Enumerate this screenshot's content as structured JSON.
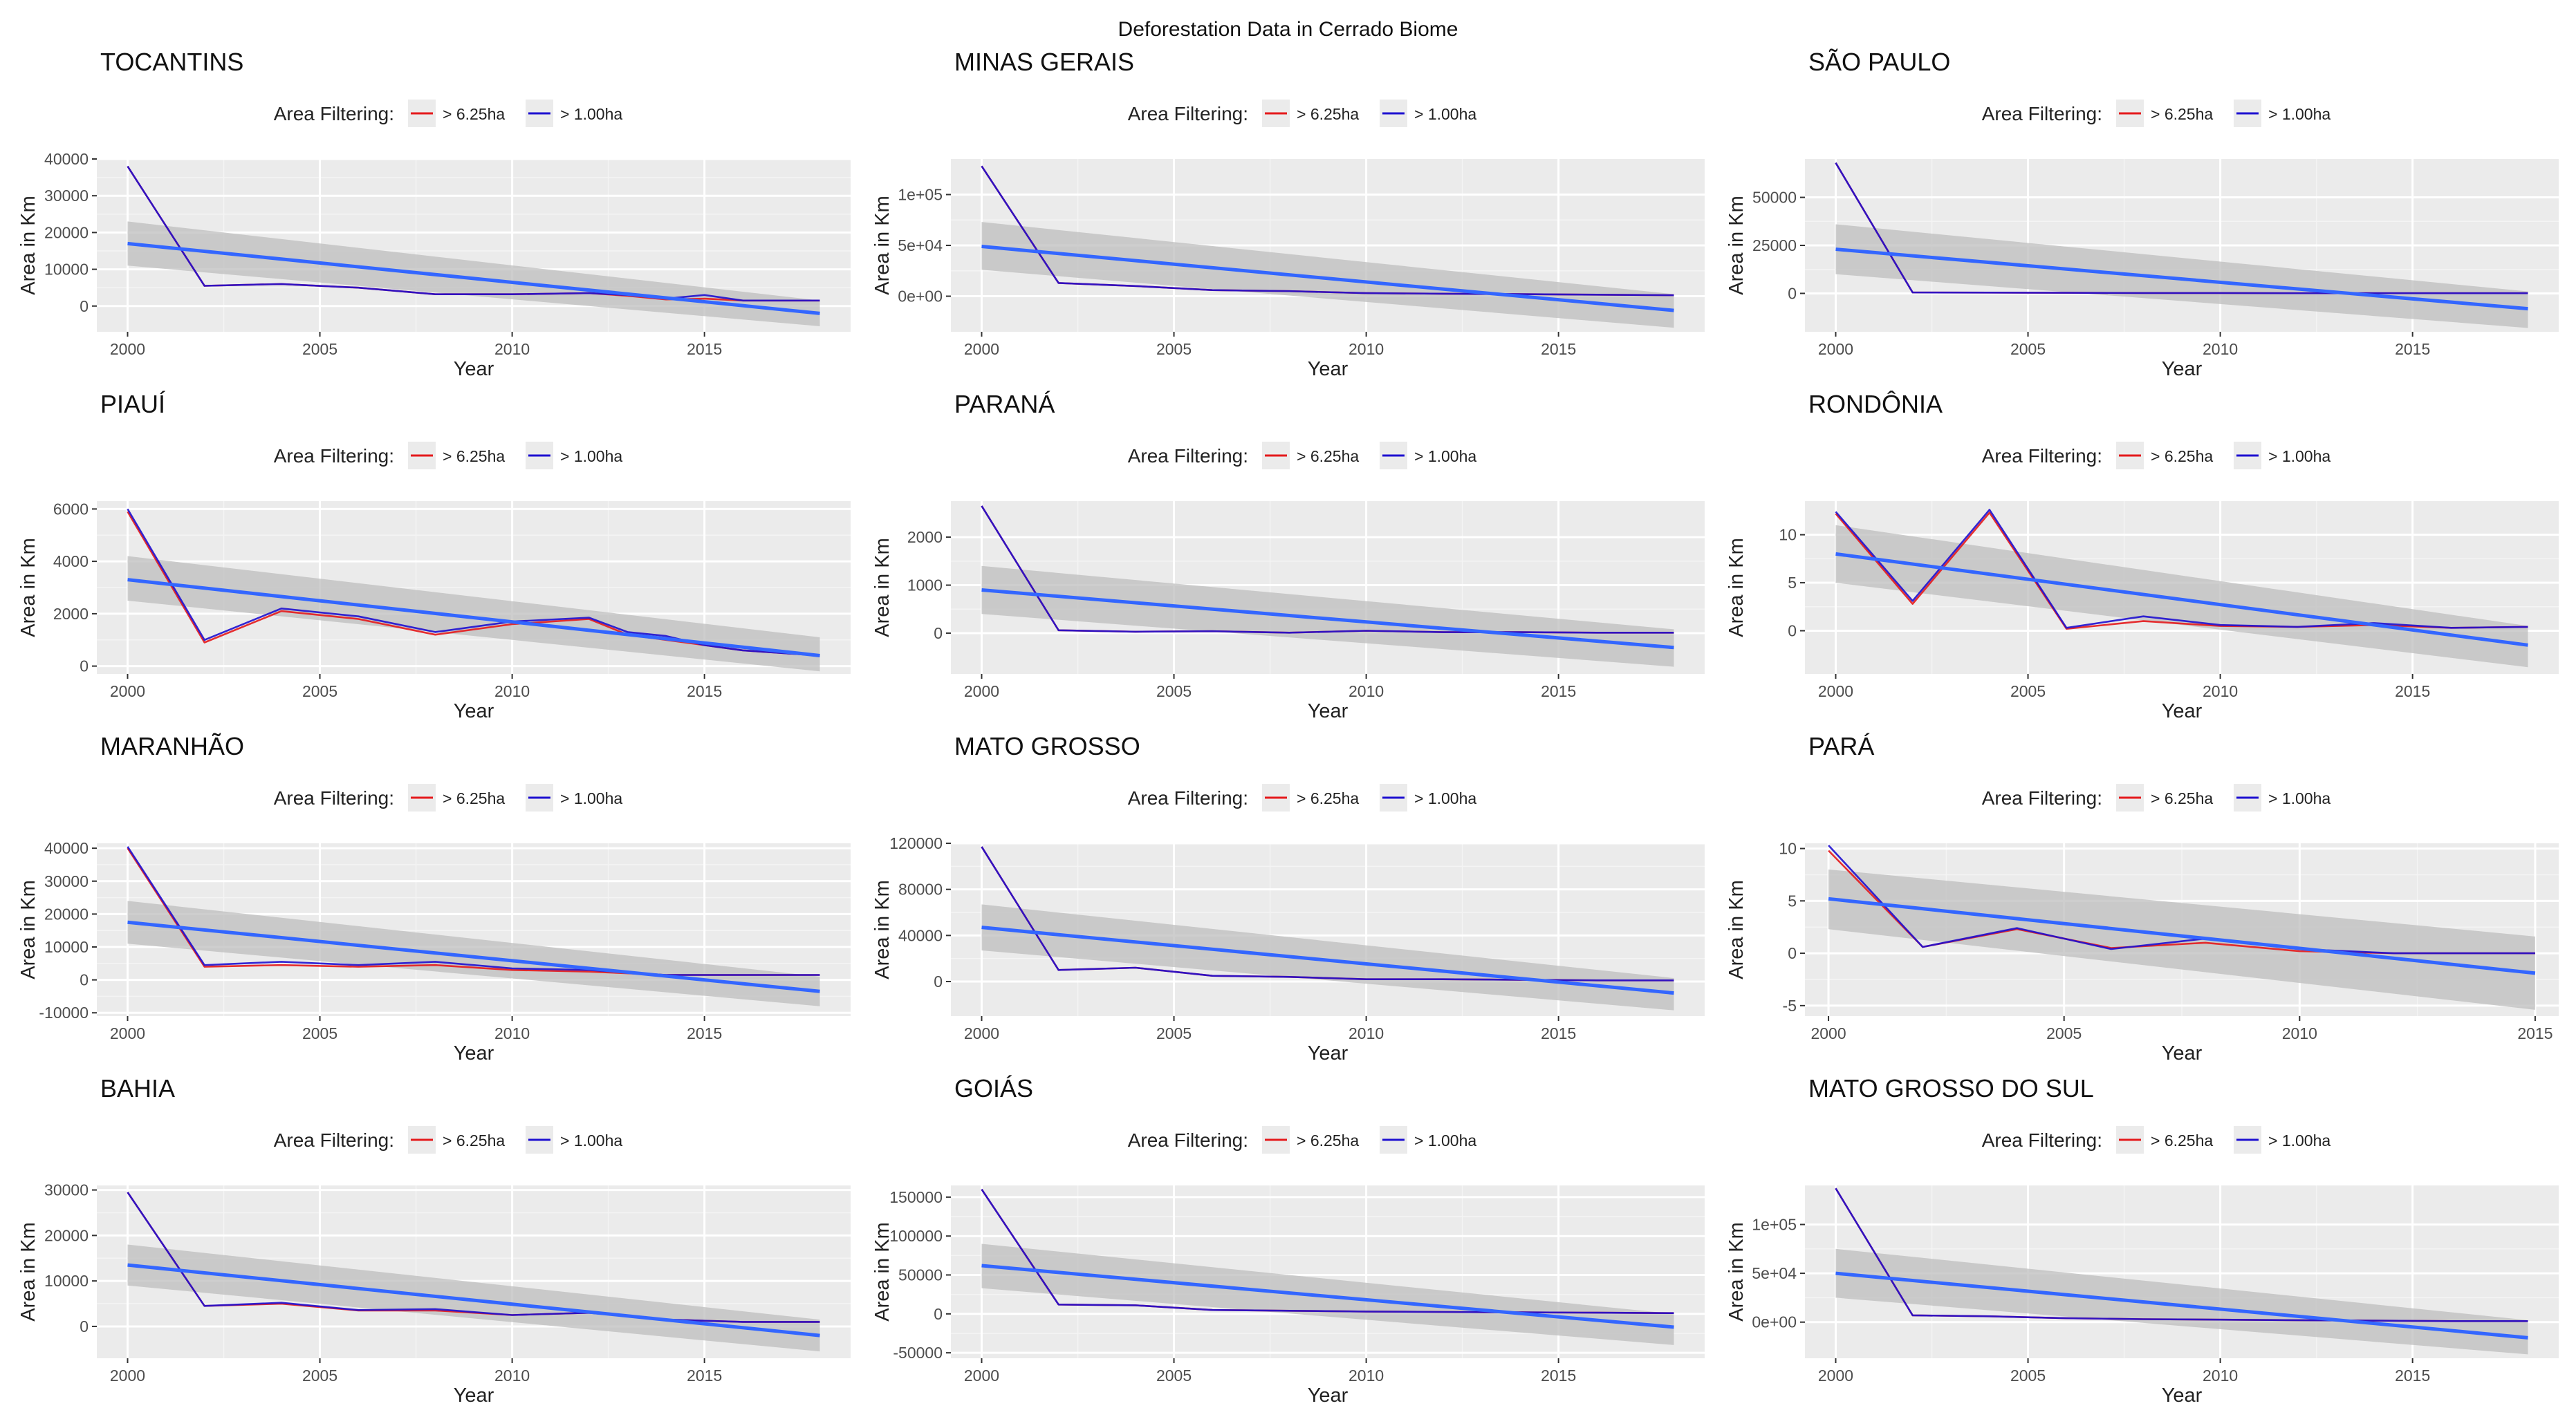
{
  "figure": {
    "title": "Deforestation Data in Cerrado Biome",
    "legend_title": "Area Filtering:",
    "legend_items": [
      "> 6.25ha",
      "> 1.00ha"
    ],
    "xlabel": "Year",
    "ylabel": "Area in Km"
  },
  "colors": {
    "panel_bg": "#EBEBEB",
    "grid_major": "#FFFFFF",
    "series_6_25": "#E41A1C",
    "series_1_00": "#1E10D0",
    "trend_line": "#3366FF",
    "confidence_band": "#BEBEBE",
    "text": "#222222",
    "tick_text": "#4D4D4D"
  },
  "chart_data": [
    {
      "type": "line",
      "title": "TOCANTINS",
      "xlabel": "Year",
      "ylabel": "Area in Km",
      "xlim": [
        1999.2,
        2018.8
      ],
      "ylim": [
        -7000,
        40000
      ],
      "xticks": [
        2000,
        2005,
        2010,
        2015
      ],
      "xtick_labels": [
        "2000",
        "2005",
        "2010",
        "2015"
      ],
      "yticks": [
        0,
        10000,
        20000,
        30000,
        40000
      ],
      "ytick_labels": [
        "0",
        "10000",
        "20000",
        "30000",
        "40000"
      ],
      "x": [
        2000,
        2002,
        2004,
        2006,
        2008,
        2010,
        2012,
        2013,
        2014,
        2015,
        2016,
        2017,
        2018
      ],
      "series": [
        {
          "name": "> 6.25ha",
          "values": [
            38000,
            5500,
            6000,
            5000,
            3200,
            3200,
            3500,
            2800,
            1800,
            2000,
            1500,
            1500,
            1500
          ]
        },
        {
          "name": "> 1.00ha",
          "values": [
            38000,
            5500,
            6000,
            5000,
            3200,
            3200,
            3500,
            3000,
            2000,
            3000,
            1500,
            1500,
            1500
          ]
        }
      ],
      "trend": {
        "x": [
          2000,
          2018
        ],
        "y": [
          17000,
          -2000
        ],
        "band_upper": [
          23000,
          1500
        ],
        "band_lower": [
          11000,
          -5500
        ]
      }
    },
    {
      "type": "line",
      "title": "MINAS GERAIS",
      "xlabel": "Year",
      "ylabel": "Area in Km",
      "xlim": [
        1999.2,
        2018.8
      ],
      "ylim": [
        -35000,
        135000
      ],
      "xticks": [
        2000,
        2005,
        2010,
        2015
      ],
      "xtick_labels": [
        "2000",
        "2005",
        "2010",
        "2015"
      ],
      "yticks": [
        0,
        50000,
        100000
      ],
      "ytick_labels": [
        "0e+00",
        "5e+04",
        "1e+05"
      ],
      "x": [
        2000,
        2002,
        2004,
        2006,
        2008,
        2010,
        2012,
        2014,
        2016,
        2018
      ],
      "series": [
        {
          "name": "> 6.25ha",
          "values": [
            128000,
            13000,
            10000,
            6000,
            5000,
            3000,
            2500,
            2000,
            1500,
            1000
          ]
        },
        {
          "name": "> 1.00ha",
          "values": [
            128000,
            13000,
            10000,
            6000,
            5000,
            3000,
            2500,
            2000,
            1500,
            1000
          ]
        }
      ],
      "trend": {
        "x": [
          2000,
          2018
        ],
        "y": [
          49000,
          -14000
        ],
        "band_upper": [
          73000,
          2000
        ],
        "band_lower": [
          26000,
          -31000
        ]
      }
    },
    {
      "type": "line",
      "title": "SÃO PAULO",
      "xlabel": "Year",
      "ylabel": "Area in Km",
      "xlim": [
        1999.2,
        2018.8
      ],
      "ylim": [
        -20000,
        70000
      ],
      "xticks": [
        2000,
        2005,
        2010,
        2015
      ],
      "xtick_labels": [
        "2000",
        "2005",
        "2010",
        "2015"
      ],
      "yticks": [
        0,
        25000,
        50000
      ],
      "ytick_labels": [
        "0",
        "25000",
        "50000"
      ],
      "x": [
        2000,
        2002,
        2004,
        2006,
        2008,
        2010,
        2012,
        2014,
        2016,
        2018
      ],
      "series": [
        {
          "name": "> 6.25ha",
          "values": [
            68000,
            500,
            400,
            300,
            200,
            200,
            100,
            100,
            100,
            100
          ]
        },
        {
          "name": "> 1.00ha",
          "values": [
            68000,
            500,
            400,
            300,
            200,
            200,
            100,
            100,
            100,
            100
          ]
        }
      ],
      "trend": {
        "x": [
          2000,
          2018
        ],
        "y": [
          23000,
          -8000
        ],
        "band_upper": [
          36000,
          1000
        ],
        "band_lower": [
          10000,
          -18000
        ]
      }
    },
    {
      "type": "line",
      "title": "PIAUÍ",
      "xlabel": "Year",
      "ylabel": "Area in Km",
      "xlim": [
        1999.2,
        2018.8
      ],
      "ylim": [
        -300,
        6300
      ],
      "xticks": [
        2000,
        2005,
        2010,
        2015
      ],
      "xtick_labels": [
        "2000",
        "2005",
        "2010",
        "2015"
      ],
      "yticks": [
        0,
        2000,
        4000,
        6000
      ],
      "ytick_labels": [
        "0",
        "2000",
        "4000",
        "6000"
      ],
      "x": [
        2000,
        2002,
        2004,
        2006,
        2008,
        2010,
        2012,
        2013,
        2014,
        2015,
        2016,
        2017,
        2018
      ],
      "series": [
        {
          "name": "> 6.25ha",
          "values": [
            5900,
            900,
            2100,
            1800,
            1200,
            1600,
            1800,
            1200,
            1000,
            800,
            600,
            500,
            400
          ]
        },
        {
          "name": "> 1.00ha",
          "values": [
            6000,
            1000,
            2200,
            1900,
            1300,
            1700,
            1850,
            1300,
            1150,
            800,
            600,
            500,
            400
          ]
        }
      ],
      "trend": {
        "x": [
          2000,
          2018
        ],
        "y": [
          3300,
          400
        ],
        "band_upper": [
          4200,
          1100
        ],
        "band_lower": [
          2500,
          -200
        ]
      }
    },
    {
      "type": "line",
      "title": "PARANÁ",
      "xlabel": "Year",
      "ylabel": "Area in Km",
      "xlim": [
        1999.2,
        2018.8
      ],
      "ylim": [
        -850,
        2750
      ],
      "xticks": [
        2000,
        2005,
        2010,
        2015
      ],
      "xtick_labels": [
        "2000",
        "2005",
        "2010",
        "2015"
      ],
      "yticks": [
        0,
        1000,
        2000
      ],
      "ytick_labels": [
        "0",
        "1000",
        "2000"
      ],
      "x": [
        2000,
        2002,
        2004,
        2006,
        2008,
        2010,
        2012,
        2014,
        2016,
        2018
      ],
      "series": [
        {
          "name": "> 6.25ha",
          "values": [
            2650,
            60,
            30,
            40,
            10,
            50,
            20,
            20,
            10,
            10
          ]
        },
        {
          "name": "> 1.00ha",
          "values": [
            2650,
            60,
            30,
            40,
            10,
            50,
            20,
            20,
            10,
            10
          ]
        }
      ],
      "trend": {
        "x": [
          2000,
          2018
        ],
        "y": [
          900,
          -300
        ],
        "band_upper": [
          1400,
          80
        ],
        "band_lower": [
          400,
          -700
        ]
      }
    },
    {
      "type": "line",
      "title": "RONDÔNIA",
      "xlabel": "Year",
      "ylabel": "Area in Km",
      "xlim": [
        1999.2,
        2018.8
      ],
      "ylim": [
        -4.5,
        13.5
      ],
      "xticks": [
        2000,
        2005,
        2010,
        2015
      ],
      "xtick_labels": [
        "2000",
        "2005",
        "2010",
        "2015"
      ],
      "yticks": [
        0,
        5,
        10
      ],
      "ytick_labels": [
        "0",
        "5",
        "10"
      ],
      "x": [
        2000,
        2002,
        2004,
        2006,
        2008,
        2010,
        2012,
        2014,
        2016,
        2018
      ],
      "series": [
        {
          "name": "> 6.25ha",
          "values": [
            12.2,
            2.8,
            12.3,
            0.2,
            1.0,
            0.5,
            0.4,
            0.6,
            0.3,
            0.4
          ]
        },
        {
          "name": "> 1.00ha",
          "values": [
            12.4,
            3.1,
            12.6,
            0.3,
            1.5,
            0.6,
            0.4,
            0.8,
            0.3,
            0.4
          ]
        }
      ],
      "trend": {
        "x": [
          2000,
          2018
        ],
        "y": [
          8.0,
          -1.5
        ],
        "band_upper": [
          11.0,
          0.5
        ],
        "band_lower": [
          5.0,
          -3.8
        ]
      }
    },
    {
      "type": "line",
      "title": "MARANHÃO",
      "xlabel": "Year",
      "ylabel": "Area in Km",
      "xlim": [
        1999.2,
        2018.8
      ],
      "ylim": [
        -11000,
        41500
      ],
      "xticks": [
        2000,
        2005,
        2010,
        2015
      ],
      "xtick_labels": [
        "2000",
        "2005",
        "2010",
        "2015"
      ],
      "yticks": [
        -10000,
        0,
        10000,
        20000,
        30000,
        40000
      ],
      "ytick_labels": [
        "-10000",
        "0",
        "10000",
        "20000",
        "30000",
        "40000"
      ],
      "x": [
        2000,
        2002,
        2004,
        2006,
        2008,
        2010,
        2012,
        2014,
        2016,
        2018
      ],
      "series": [
        {
          "name": "> 6.25ha",
          "values": [
            40000,
            4000,
            4500,
            4000,
            4500,
            3000,
            2500,
            1500,
            1500,
            1500
          ]
        },
        {
          "name": "> 1.00ha",
          "values": [
            40500,
            4500,
            5500,
            4500,
            5500,
            3500,
            3000,
            1500,
            1500,
            1500
          ]
        }
      ],
      "trend": {
        "x": [
          2000,
          2018
        ],
        "y": [
          17500,
          -3500
        ],
        "band_upper": [
          24000,
          1000
        ],
        "band_lower": [
          11000,
          -8000
        ]
      }
    },
    {
      "type": "line",
      "title": "MATO GROSSO",
      "xlabel": "Year",
      "ylabel": "Area in Km",
      "xlim": [
        1999.2,
        2018.8
      ],
      "ylim": [
        -30000,
        120000
      ],
      "xticks": [
        2000,
        2005,
        2010,
        2015
      ],
      "xtick_labels": [
        "2000",
        "2005",
        "2010",
        "2015"
      ],
      "yticks": [
        0,
        40000,
        80000,
        120000
      ],
      "ytick_labels": [
        "0",
        "40000",
        "80000",
        "120000"
      ],
      "x": [
        2000,
        2002,
        2004,
        2006,
        2008,
        2010,
        2012,
        2014,
        2016,
        2018
      ],
      "series": [
        {
          "name": "> 6.25ha",
          "values": [
            117000,
            10000,
            12000,
            5000,
            4000,
            2000,
            2000,
            1500,
            1000,
            1000
          ]
        },
        {
          "name": "> 1.00ha",
          "values": [
            117000,
            10000,
            12000,
            5000,
            4000,
            2000,
            2000,
            1500,
            1000,
            1000
          ]
        }
      ],
      "trend": {
        "x": [
          2000,
          2018
        ],
        "y": [
          47000,
          -10000
        ],
        "band_upper": [
          67000,
          3000
        ],
        "band_lower": [
          27000,
          -25000
        ]
      }
    },
    {
      "type": "line",
      "title": "PARÁ",
      "xlabel": "Year",
      "ylabel": "Area in Km",
      "xlim": [
        1999.5,
        2015.5
      ],
      "ylim": [
        -6,
        10.5
      ],
      "xticks": [
        2000,
        2005,
        2010,
        2015
      ],
      "xtick_labels": [
        "2000",
        "2005",
        "2010",
        "2015"
      ],
      "yticks": [
        -5,
        0,
        5,
        10
      ],
      "ytick_labels": [
        "-5",
        "0",
        "5",
        "10"
      ],
      "x": [
        2000,
        2002,
        2004,
        2006,
        2008,
        2010,
        2012,
        2014,
        2015
      ],
      "series": [
        {
          "name": "> 6.25ha",
          "values": [
            9.8,
            0.6,
            2.3,
            0.5,
            1.0,
            0.2,
            0.0,
            0.0,
            0.0
          ]
        },
        {
          "name": "> 1.00ha",
          "values": [
            10.3,
            0.6,
            2.4,
            0.4,
            1.4,
            0.4,
            0.0,
            0.0,
            0.0
          ]
        }
      ],
      "trend": {
        "x": [
          2000,
          2015
        ],
        "y": [
          5.2,
          -1.9
        ],
        "band_upper": [
          8.0,
          1.6
        ],
        "band_lower": [
          2.3,
          -5.4
        ]
      }
    },
    {
      "type": "line",
      "title": "BAHIA",
      "xlabel": "Year",
      "ylabel": "Area in Km",
      "xlim": [
        1999.2,
        2018.8
      ],
      "ylim": [
        -7000,
        31000
      ],
      "xticks": [
        2000,
        2005,
        2010,
        2015
      ],
      "xtick_labels": [
        "2000",
        "2005",
        "2010",
        "2015"
      ],
      "yticks": [
        0,
        10000,
        20000,
        30000
      ],
      "ytick_labels": [
        "0",
        "10000",
        "20000",
        "30000"
      ],
      "x": [
        2000,
        2002,
        2004,
        2006,
        2008,
        2010,
        2012,
        2014,
        2016,
        2018
      ],
      "series": [
        {
          "name": "> 6.25ha",
          "values": [
            29500,
            4500,
            5000,
            3500,
            3500,
            2500,
            3000,
            1500,
            1000,
            1000
          ]
        },
        {
          "name": "> 1.00ha",
          "values": [
            29500,
            4500,
            5200,
            3600,
            3800,
            2500,
            3000,
            1500,
            1000,
            1000
          ]
        }
      ],
      "trend": {
        "x": [
          2000,
          2018
        ],
        "y": [
          13500,
          -2000
        ],
        "band_upper": [
          18000,
          1500
        ],
        "band_lower": [
          9000,
          -5500
        ]
      }
    },
    {
      "type": "line",
      "title": "GOIÁS",
      "xlabel": "Year",
      "ylabel": "Area in Km",
      "xlim": [
        1999.2,
        2018.8
      ],
      "ylim": [
        -57000,
        165000
      ],
      "xticks": [
        2000,
        2005,
        2010,
        2015
      ],
      "xtick_labels": [
        "2000",
        "2005",
        "2010",
        "2015"
      ],
      "yticks": [
        -50000,
        0,
        50000,
        100000,
        150000
      ],
      "ytick_labels": [
        "-50000",
        "0",
        "50000",
        "100000",
        "150000"
      ],
      "x": [
        2000,
        2002,
        2004,
        2006,
        2008,
        2010,
        2012,
        2014,
        2016,
        2018
      ],
      "series": [
        {
          "name": "> 6.25ha",
          "values": [
            160000,
            12000,
            11000,
            5000,
            4000,
            3000,
            2500,
            2000,
            1500,
            1000
          ]
        },
        {
          "name": "> 1.00ha",
          "values": [
            160000,
            12000,
            11000,
            5000,
            4000,
            3000,
            2500,
            2000,
            1500,
            1000
          ]
        }
      ],
      "trend": {
        "x": [
          2000,
          2018
        ],
        "y": [
          62000,
          -17000
        ],
        "band_upper": [
          90000,
          0
        ],
        "band_lower": [
          33000,
          -40000
        ]
      }
    },
    {
      "type": "line",
      "title": "MATO GROSSO DO SUL",
      "xlabel": "Year",
      "ylabel": "Area in Km",
      "xlim": [
        1999.2,
        2018.8
      ],
      "ylim": [
        -37000,
        140000
      ],
      "xticks": [
        2000,
        2005,
        2010,
        2015
      ],
      "xtick_labels": [
        "2000",
        "2005",
        "2010",
        "2015"
      ],
      "yticks": [
        0,
        50000,
        100000
      ],
      "ytick_labels": [
        "0e+00",
        "5e+04",
        "1e+05"
      ],
      "x": [
        2000,
        2002,
        2004,
        2006,
        2008,
        2010,
        2012,
        2014,
        2016,
        2018
      ],
      "series": [
        {
          "name": "> 6.25ha",
          "values": [
            137000,
            7000,
            6000,
            4000,
            3000,
            2500,
            2000,
            1500,
            1000,
            1000
          ]
        },
        {
          "name": "> 1.00ha",
          "values": [
            137000,
            7000,
            6000,
            4000,
            3000,
            2500,
            2000,
            1500,
            1000,
            1000
          ]
        }
      ],
      "trend": {
        "x": [
          2000,
          2018
        ],
        "y": [
          50000,
          -16000
        ],
        "band_upper": [
          75000,
          2000
        ],
        "band_lower": [
          25000,
          -33000
        ]
      }
    }
  ]
}
